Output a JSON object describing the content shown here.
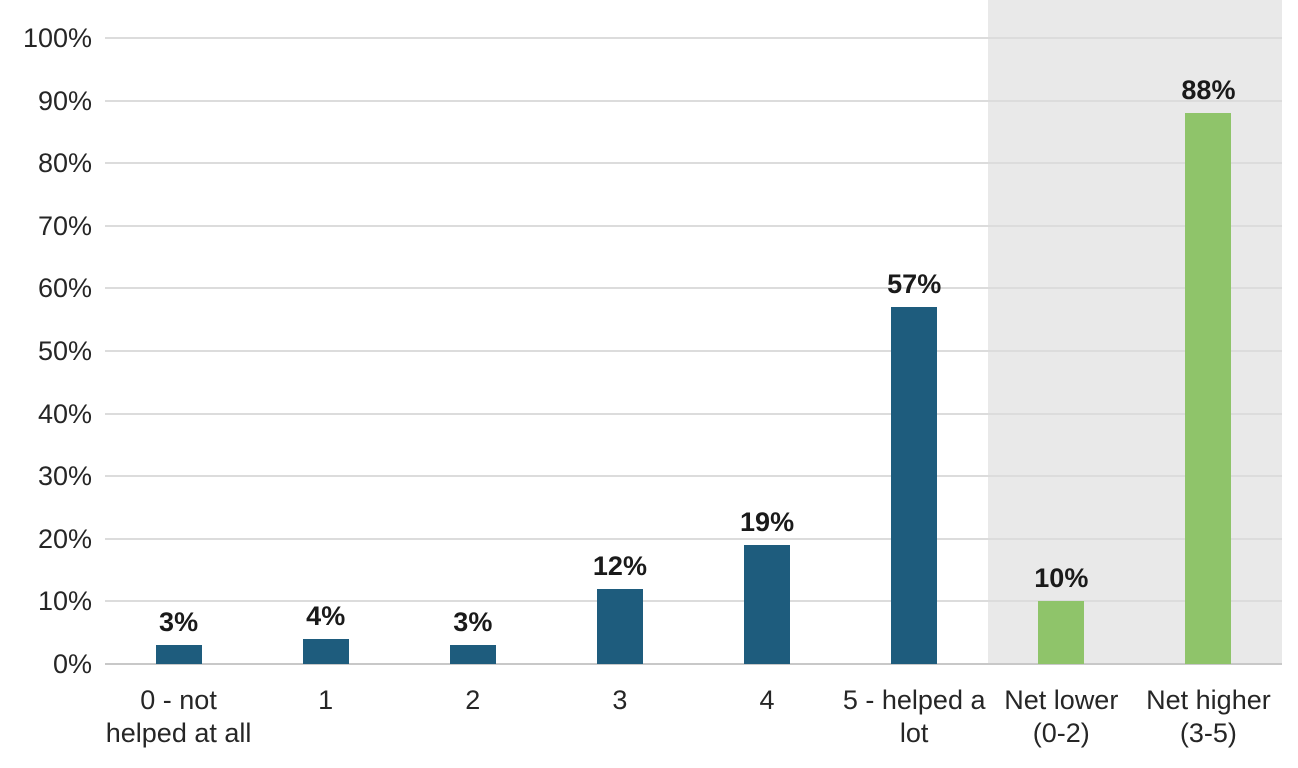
{
  "chart_data": {
    "type": "bar",
    "title": "",
    "xlabel": "",
    "ylabel": "",
    "categories": [
      "0 - not helped at all",
      "1",
      "2",
      "3",
      "4",
      "5 - helped a lot",
      "Net lower (0-2)",
      "Net higher (3-5)"
    ],
    "values": [
      3,
      4,
      3,
      12,
      19,
      57,
      10,
      88
    ],
    "data_labels": [
      "3%",
      "4%",
      "3%",
      "12%",
      "19%",
      "57%",
      "10%",
      "88%"
    ],
    "ylim": [
      0,
      100
    ],
    "yticks": [
      0,
      10,
      20,
      30,
      40,
      50,
      60,
      70,
      80,
      90,
      100
    ],
    "ytick_labels": [
      "0%",
      "10%",
      "20%",
      "30%",
      "40%",
      "50%",
      "60%",
      "70%",
      "80%",
      "90%",
      "100%"
    ],
    "grid": "horizontal",
    "legend": "none",
    "bar_colors": [
      "#1e5c7d",
      "#1e5c7d",
      "#1e5c7d",
      "#1e5c7d",
      "#1e5c7d",
      "#1e5c7d",
      "#8fc46a",
      "#8fc46a"
    ],
    "highlight_band": {
      "start_category_index": 6,
      "end_category_index": 7,
      "color": "#e9e9e9",
      "note": "gray background behind the two Net summary bars"
    },
    "colors": {
      "bar_rating": "#1e5c7d",
      "bar_net": "#8fc46a",
      "band": "#e9e9e9",
      "gridline": "#dcdcdc",
      "axis_line": "#c8c8c8",
      "text": "#262626"
    }
  }
}
